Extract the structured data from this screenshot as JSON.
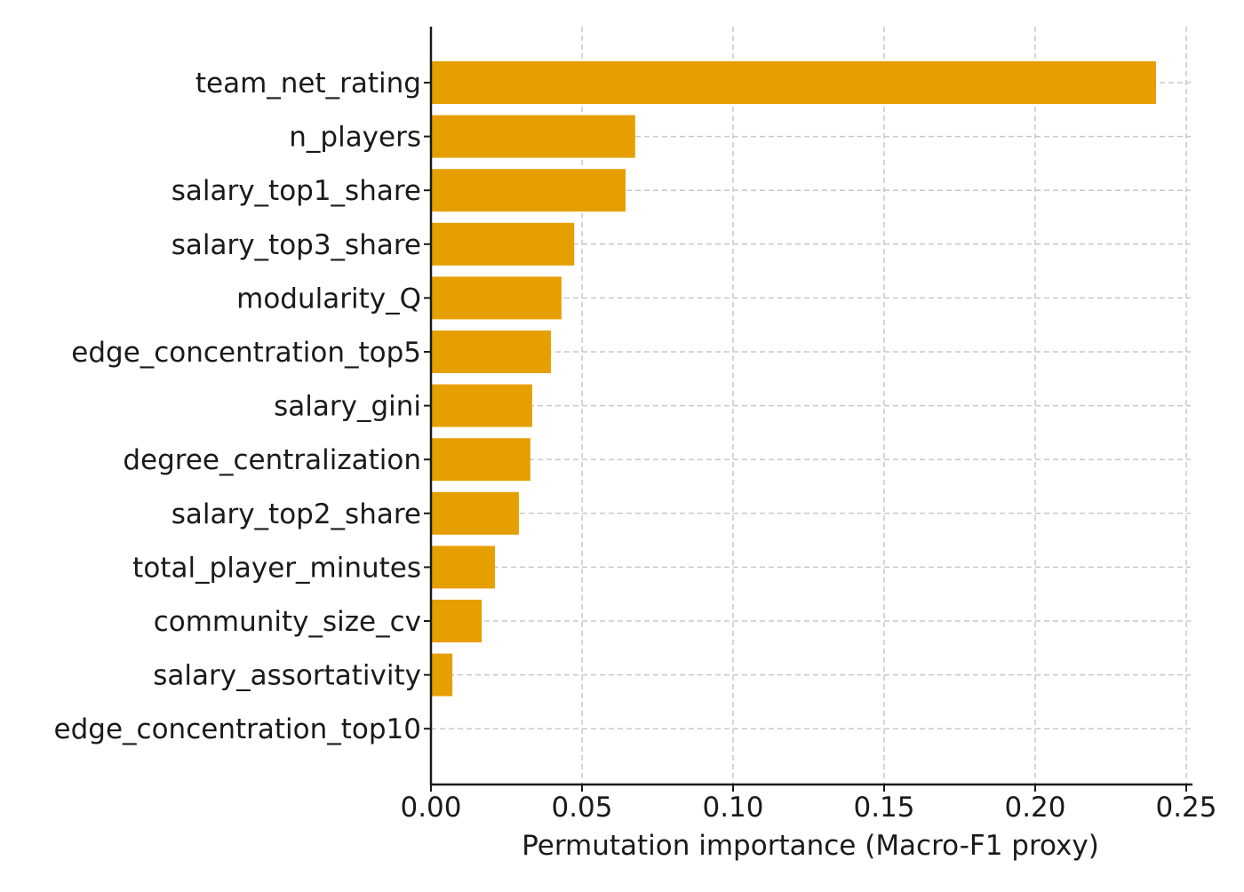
{
  "chart_data": {
    "type": "bar",
    "orientation": "horizontal",
    "title": "",
    "xlabel": "Permutation importance (Macro-F1 proxy)",
    "ylabel": "",
    "xlim": [
      0,
      0.25
    ],
    "xticks": [
      "0.00",
      "0.05",
      "0.10",
      "0.15",
      "0.20",
      "0.25"
    ],
    "grid": true,
    "bar_color": "#E69F00",
    "categories": [
      "team_net_rating",
      "n_players",
      "salary_top1_share",
      "salary_top3_share",
      "modularity_Q",
      "edge_concentration_top5",
      "salary_gini",
      "degree_centralization",
      "salary_top2_share",
      "total_player_minutes",
      "community_size_cv",
      "salary_assortativity",
      "edge_concentration_top10"
    ],
    "values": [
      0.24,
      0.0676,
      0.0644,
      0.0474,
      0.0432,
      0.0397,
      0.0335,
      0.0329,
      0.0291,
      0.0212,
      0.0168,
      0.0071,
      0.0
    ]
  }
}
